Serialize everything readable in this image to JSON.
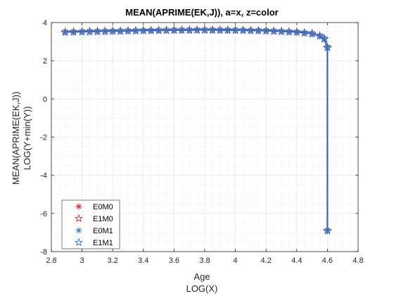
{
  "chart_data": {
    "type": "line",
    "title": "MEAN(APRIME(EK,J)), a=x, z=color",
    "xlabel": "Age",
    "xlabel2": "LOG(X)",
    "ylabel": "MEAN(APRIME(EK,J))",
    "ylabel2": "LOG(Y+min(Y))",
    "xlim": [
      2.8,
      4.8
    ],
    "ylim": [
      -8,
      4
    ],
    "xticks": [
      2.8,
      3,
      3.2,
      3.4,
      3.6,
      3.8,
      4,
      4.2,
      4.4,
      4.6,
      4.8
    ],
    "xtick_labels": [
      "2.8",
      "3",
      "3.2",
      "3.4",
      "3.6",
      "3.8",
      "4",
      "4.2",
      "4.4",
      "4.6",
      "4.8"
    ],
    "yticks": [
      -8,
      -6,
      -4,
      -2,
      0,
      2,
      4
    ],
    "ytick_labels": [
      "-8",
      "-6",
      "-4",
      "-2",
      "0",
      "2",
      "4"
    ],
    "grid": true,
    "minor_grid": true,
    "legend_position": "bottom-left",
    "series": [
      {
        "name": "E0M0",
        "color": "#d62728",
        "marker": "asterisk",
        "x": [
          2.89,
          3.0,
          3.2,
          3.4,
          3.6,
          3.8,
          4.0,
          4.2,
          4.4,
          4.5,
          4.55,
          4.58,
          4.6,
          4.6
        ],
        "y": [
          3.5,
          3.52,
          3.55,
          3.58,
          3.6,
          3.61,
          3.6,
          3.57,
          3.5,
          3.42,
          3.3,
          3.15,
          2.7,
          -6.9
        ]
      },
      {
        "name": "E1M0",
        "color": "#d62728",
        "marker": "pentagram",
        "x": [
          2.89,
          3.0,
          3.2,
          3.4,
          3.6,
          3.8,
          4.0,
          4.2,
          4.4,
          4.5,
          4.55,
          4.58,
          4.6,
          4.6
        ],
        "y": [
          3.5,
          3.52,
          3.55,
          3.58,
          3.6,
          3.61,
          3.6,
          3.57,
          3.5,
          3.42,
          3.3,
          3.15,
          2.7,
          -6.9
        ]
      },
      {
        "name": "E0M1",
        "color": "#3a6fc0",
        "marker": "asterisk",
        "x": [
          2.89,
          3.0,
          3.2,
          3.4,
          3.6,
          3.8,
          4.0,
          4.2,
          4.4,
          4.5,
          4.55,
          4.58,
          4.6,
          4.6
        ],
        "y": [
          3.5,
          3.52,
          3.55,
          3.58,
          3.6,
          3.61,
          3.6,
          3.57,
          3.5,
          3.42,
          3.3,
          3.15,
          2.7,
          -6.9
        ]
      },
      {
        "name": "E1M1",
        "color": "#3a6fc0",
        "marker": "pentagram",
        "x": [
          2.89,
          3.0,
          3.2,
          3.4,
          3.6,
          3.8,
          4.0,
          4.2,
          4.4,
          4.5,
          4.55,
          4.58,
          4.6,
          4.6
        ],
        "y": [
          3.5,
          3.52,
          3.55,
          3.58,
          3.6,
          3.61,
          3.6,
          3.57,
          3.5,
          3.42,
          3.3,
          3.15,
          2.7,
          -6.9
        ]
      }
    ]
  }
}
